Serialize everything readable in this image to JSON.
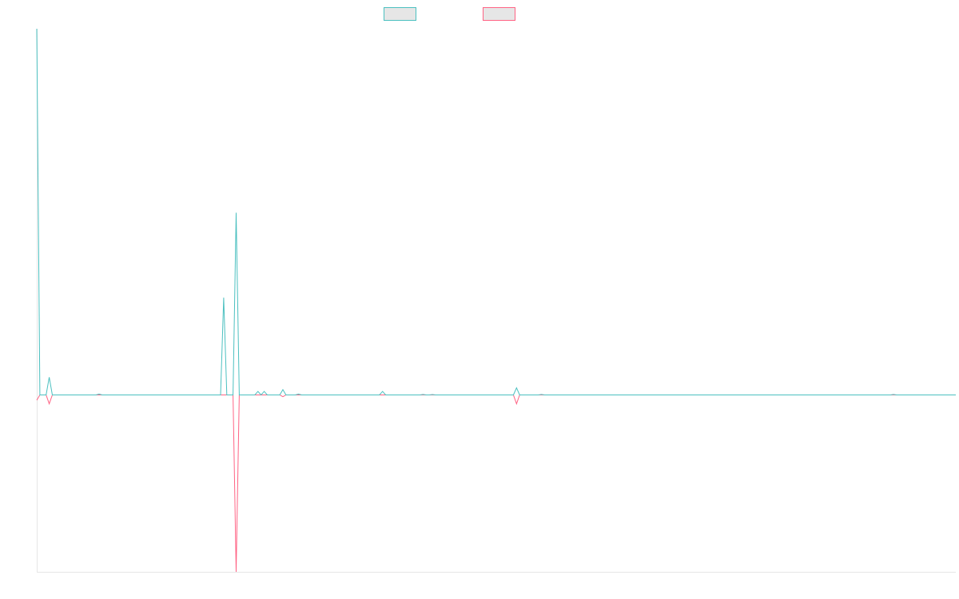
{
  "chart_data": {
    "type": "line",
    "title": "",
    "xlabel": "",
    "ylabel": "",
    "grid": false,
    "legend_placement": "top-center",
    "ylim": [
      -1.0,
      2.07
    ],
    "n_points": 296,
    "x_step": 1,
    "colors": {
      "series_1": "#4bc0c0",
      "series_2": "#ff6384",
      "legend_fill": "#e6e6e6",
      "axis": "#e6e6e6"
    },
    "series": [
      {
        "key": "series_1",
        "baseline": 0,
        "points": [
          [
            0,
            2.07
          ],
          [
            1,
            0
          ],
          [
            3,
            0
          ],
          [
            4,
            0.1
          ],
          [
            5,
            0
          ],
          [
            19,
            0
          ],
          [
            20,
            0.005
          ],
          [
            21,
            0
          ],
          [
            59,
            0
          ],
          [
            60,
            0.55
          ],
          [
            61,
            0
          ],
          [
            63,
            0
          ],
          [
            64,
            1.03
          ],
          [
            65,
            0
          ],
          [
            70,
            0
          ],
          [
            71,
            0.02
          ],
          [
            72,
            0
          ],
          [
            73,
            0.02
          ],
          [
            74,
            0
          ],
          [
            78,
            0
          ],
          [
            79,
            0.03
          ],
          [
            80,
            0
          ],
          [
            83,
            0
          ],
          [
            84,
            0.005
          ],
          [
            85,
            0
          ],
          [
            110,
            0
          ],
          [
            111,
            0.02
          ],
          [
            112,
            0
          ],
          [
            123,
            0
          ],
          [
            124,
            0.003
          ],
          [
            125,
            0
          ],
          [
            126,
            0
          ],
          [
            127,
            0.002
          ],
          [
            128,
            0
          ],
          [
            153,
            0
          ],
          [
            154,
            0.04
          ],
          [
            155,
            0
          ],
          [
            161,
            0
          ],
          [
            162,
            0.003
          ],
          [
            163,
            0
          ],
          [
            274,
            0
          ],
          [
            275,
            0.003
          ],
          [
            276,
            0
          ],
          [
            295,
            0
          ]
        ]
      },
      {
        "key": "series_2",
        "baseline": 0,
        "points": [
          [
            0,
            -0.03
          ],
          [
            1,
            0
          ],
          [
            3,
            0
          ],
          [
            4,
            -0.05
          ],
          [
            5,
            0
          ],
          [
            63,
            0
          ],
          [
            64,
            -1.0
          ],
          [
            65,
            0
          ],
          [
            78,
            0
          ],
          [
            79,
            -0.01
          ],
          [
            80,
            0
          ],
          [
            153,
            0
          ],
          [
            154,
            -0.05
          ],
          [
            155,
            0
          ],
          [
            295,
            0
          ]
        ]
      }
    ]
  }
}
